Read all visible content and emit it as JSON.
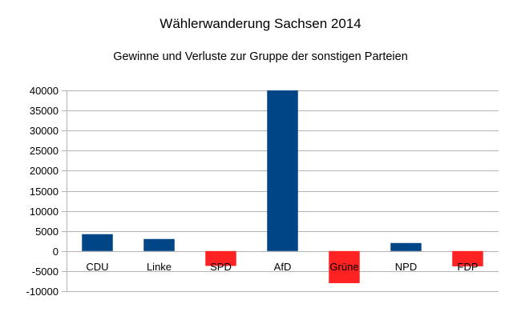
{
  "chart_data": {
    "type": "bar",
    "title": "Wählerwanderung Sachsen 2014",
    "subtitle": "Gewinne und Verluste zur Gruppe der sonstigen Parteien",
    "categories": [
      "CDU",
      "Linke",
      "SPD",
      "AfD",
      "Grüne",
      "NPD",
      "FDP"
    ],
    "values": [
      4200,
      3000,
      -3700,
      40000,
      -8000,
      2000,
      -3800
    ],
    "bar_colors": [
      "#004586",
      "#004586",
      "#ff2222",
      "#004586",
      "#ff2222",
      "#004586",
      "#ff2222"
    ],
    "ylim": [
      -10000,
      40000
    ],
    "yticks": [
      40000,
      35000,
      30000,
      25000,
      20000,
      15000,
      10000,
      5000,
      0,
      -5000,
      -10000
    ],
    "ytick_labels": [
      "40000",
      "35000",
      "30000",
      "25000",
      "20000",
      "15000",
      "10000",
      "5000",
      "0",
      "-5000",
      "-10000"
    ],
    "grid": true,
    "legend": "none",
    "gridline_color": "#b3b3b3"
  }
}
